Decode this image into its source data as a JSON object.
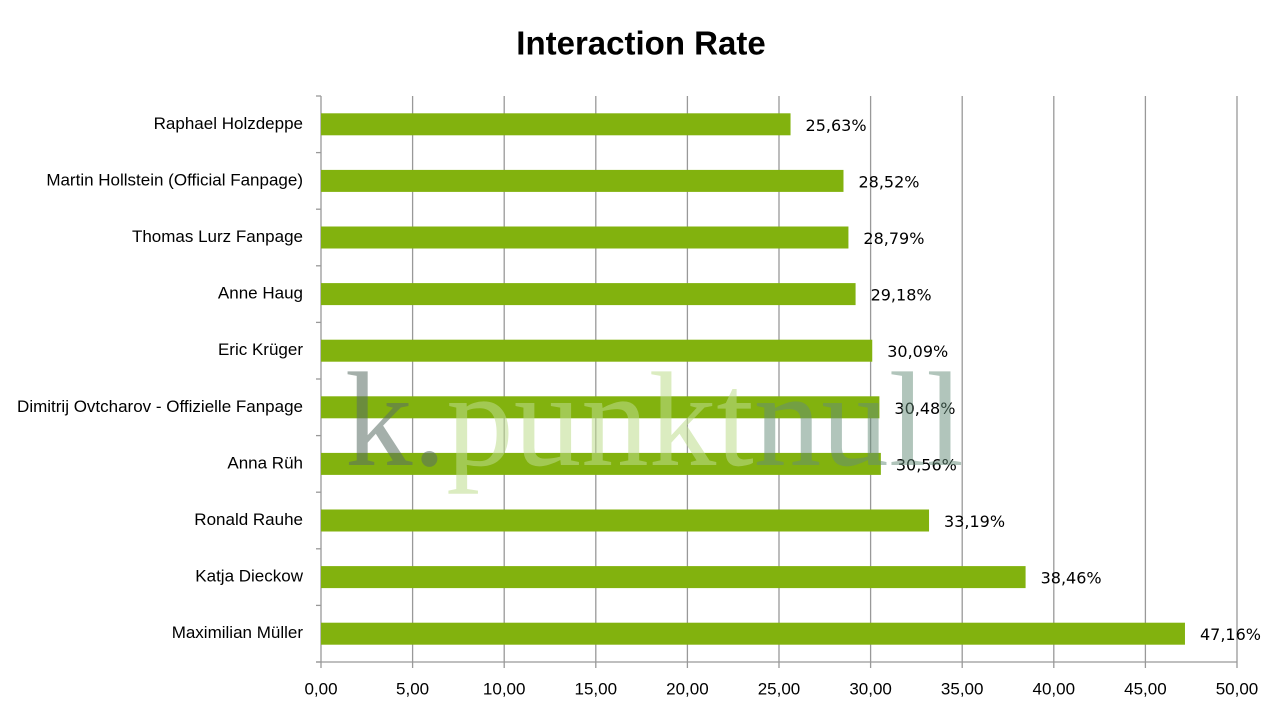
{
  "chart_data": {
    "type": "barh",
    "title": "Interaction Rate",
    "categories": [
      "Raphael Holzdeppe",
      "Martin Hollstein (Official Fanpage)",
      "Thomas Lurz Fanpage",
      "Anne Haug",
      "Eric Krüger",
      "Dimitrij Ovtcharov - Offizielle Fanpage",
      "Anna Rüh",
      "Ronald Rauhe",
      "Katja Dieckow",
      "Maximilian Müller"
    ],
    "values": [
      25.63,
      28.52,
      28.79,
      29.18,
      30.09,
      30.48,
      30.56,
      33.19,
      38.46,
      47.16
    ],
    "value_labels": [
      "25,63%",
      "28,52%",
      "28,79%",
      "29,18%",
      "30,09%",
      "30,48%",
      "30,56%",
      "33,19%",
      "38,46%",
      "47,16%"
    ],
    "color": "#82b20e",
    "xlim": [
      0,
      50
    ],
    "xticks": [
      {
        "value": 0,
        "label": "0,00"
      },
      {
        "value": 5,
        "label": "5,00"
      },
      {
        "value": 10,
        "label": "10,00"
      },
      {
        "value": 15,
        "label": "15,00"
      },
      {
        "value": 20,
        "label": "20,00"
      },
      {
        "value": 25,
        "label": "25,00"
      },
      {
        "value": 30,
        "label": "30,00"
      },
      {
        "value": 35,
        "label": "35,00"
      },
      {
        "value": 40,
        "label": "40,00"
      },
      {
        "value": 45,
        "label": "45,00"
      },
      {
        "value": 50,
        "label": "50,00"
      }
    ],
    "grid": true,
    "watermark": [
      "k.",
      "punkt",
      "null"
    ]
  }
}
